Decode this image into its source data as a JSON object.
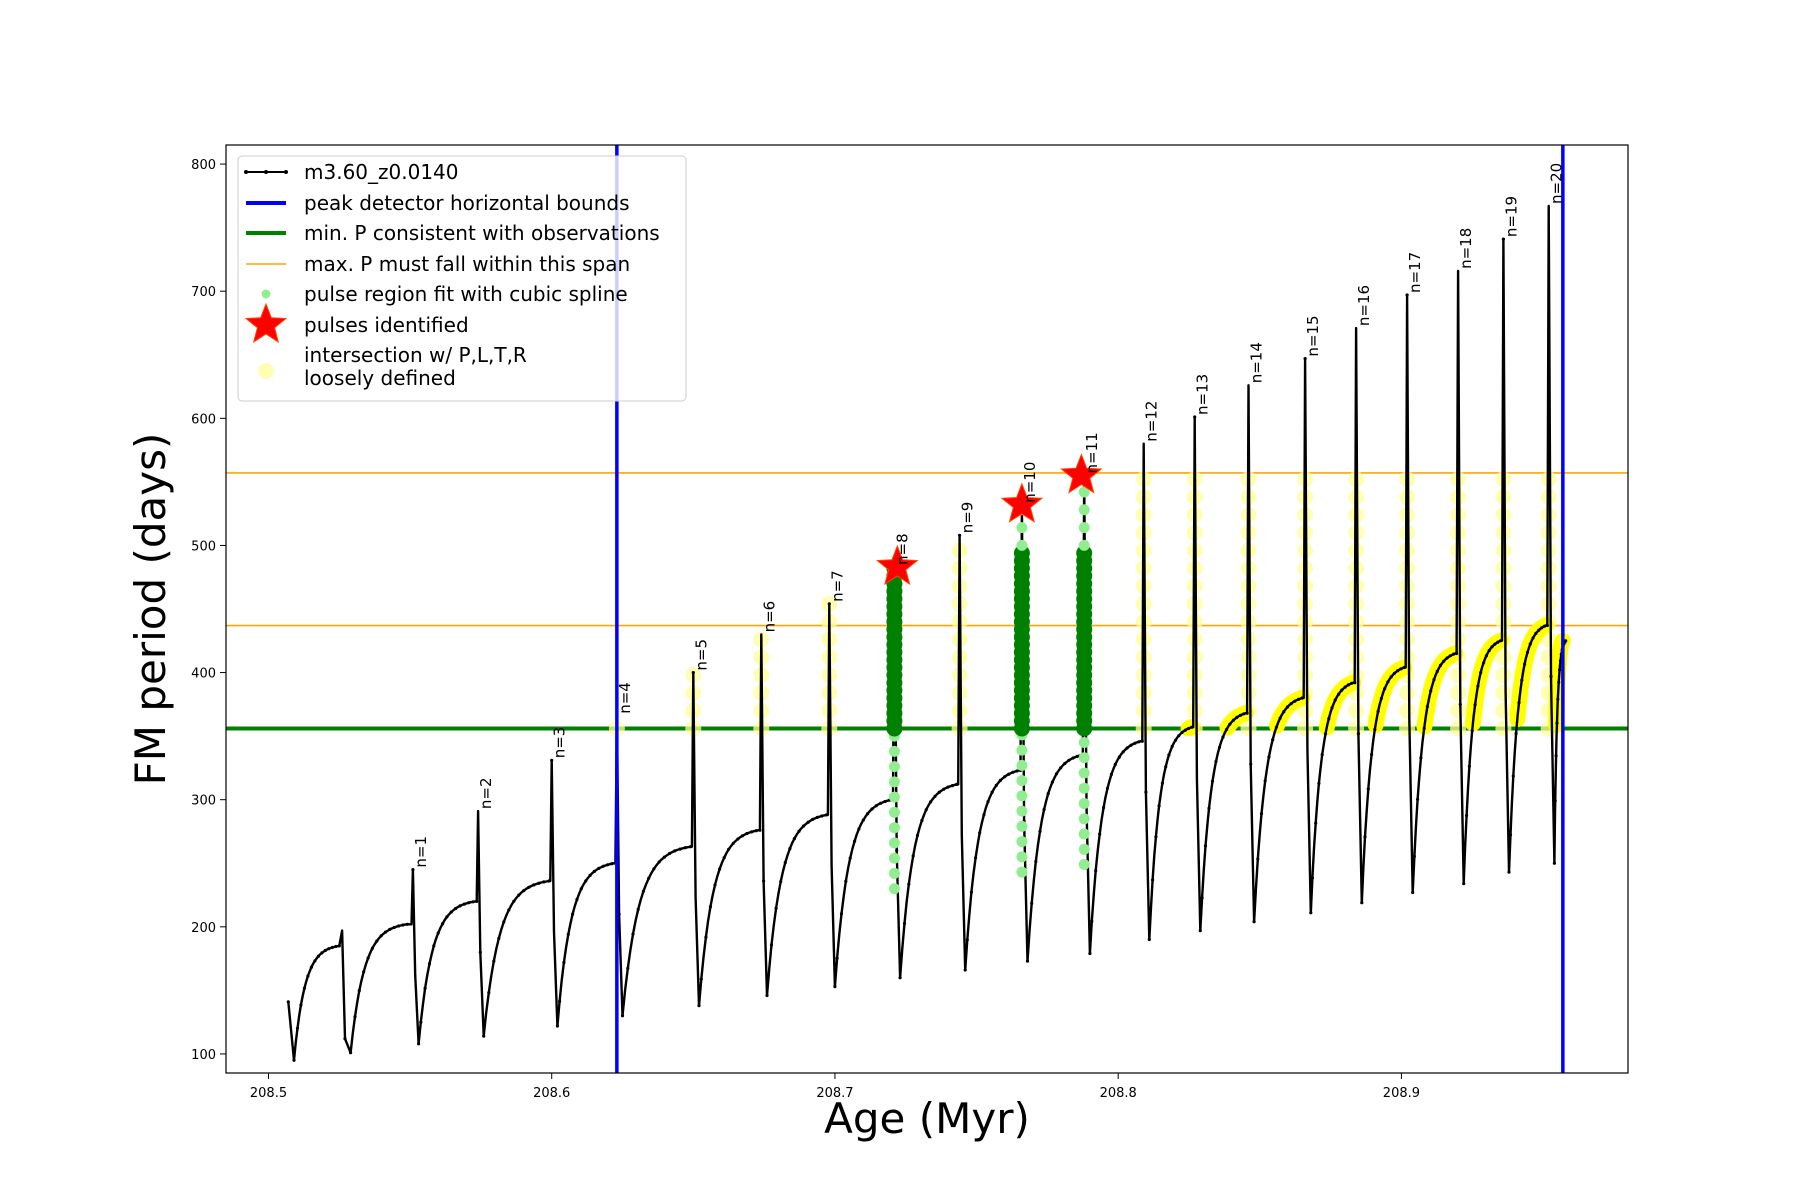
{
  "chart_data": {
    "type": "line",
    "xlabel": "Age (Myr)",
    "ylabel": "FM period (days)",
    "xlim": [
      208.485,
      208.98
    ],
    "ylim": [
      85,
      815
    ],
    "xticks": [
      208.5,
      208.6,
      208.7,
      208.8,
      208.9
    ],
    "yticks": [
      100,
      200,
      300,
      400,
      500,
      600,
      700,
      800
    ],
    "grid": false,
    "legend_position": "top-left",
    "legend": [
      {
        "label": "m3.60_z0.0140",
        "kind": "line-dots",
        "color": "#000000"
      },
      {
        "label": "peak detector horizontal bounds",
        "kind": "line",
        "color": "#0000ff"
      },
      {
        "label": "min. P consistent with observations",
        "kind": "line",
        "color": "#008000"
      },
      {
        "label": "max. P must fall within this span",
        "kind": "thin-line",
        "color": "#ffa500"
      },
      {
        "label": "pulse region fit with cubic spline",
        "kind": "dot",
        "color": "#90ee90"
      },
      {
        "label": "pulses identified",
        "kind": "star",
        "color": "#ff0000"
      },
      {
        "label": "intersection w/ P,L,T,R\nloosely defined",
        "kind": "big-dot",
        "color": "#ffff99"
      }
    ],
    "vertical_lines": {
      "color": "#0000ff",
      "x": [
        208.623,
        208.957
      ]
    },
    "min_period_line": {
      "color": "#008000",
      "y": 356
    },
    "max_period_span": {
      "color": "#ffa500",
      "y": [
        437,
        557
      ]
    },
    "start": {
      "age": 208.507,
      "period": 141,
      "min": 95,
      "plateau": 185
    },
    "pulses": [
      {
        "label": "n=1",
        "age": 208.551,
        "peak": 245,
        "pre": 202,
        "min": 108,
        "loose": false,
        "spline": false
      },
      {
        "label": "n=2",
        "age": 208.574,
        "peak": 291,
        "pre": 220,
        "min": 114,
        "loose": false,
        "spline": false
      },
      {
        "label": "n=3",
        "age": 208.6,
        "peak": 331,
        "pre": 236,
        "min": 122,
        "loose": false,
        "spline": false
      },
      {
        "label": "n=4",
        "age": 208.623,
        "peak": 366,
        "pre": 250,
        "min": 130,
        "loose": true,
        "spline": false
      },
      {
        "label": "n=5",
        "age": 208.65,
        "peak": 400,
        "pre": 263,
        "min": 138,
        "loose": true,
        "spline": false
      },
      {
        "label": "n=6",
        "age": 208.674,
        "peak": 430,
        "pre": 276,
        "min": 146,
        "loose": true,
        "spline": false
      },
      {
        "label": "n=7",
        "age": 208.698,
        "peak": 454,
        "pre": 288,
        "min": 153,
        "loose": true,
        "spline": false
      },
      {
        "label": "n=8",
        "age": 208.721,
        "peak": 483,
        "pre": 300,
        "min": 160,
        "loose": false,
        "spline": true
      },
      {
        "label": "n=9",
        "age": 208.744,
        "peak": 508,
        "pre": 312,
        "min": 166,
        "loose": true,
        "spline": false
      },
      {
        "label": "n=10",
        "age": 208.766,
        "peak": 532,
        "pre": 323,
        "min": 173,
        "loose": false,
        "spline": true
      },
      {
        "label": "n=11",
        "age": 208.788,
        "peak": 555,
        "pre": 335,
        "min": 179,
        "loose": false,
        "spline": true
      },
      {
        "label": "n=12",
        "age": 208.809,
        "peak": 580,
        "pre": 346,
        "min": 190,
        "loose": true,
        "spline": false
      },
      {
        "label": "n=13",
        "age": 208.827,
        "peak": 601,
        "pre": 357,
        "min": 197,
        "loose": true,
        "spline": false
      },
      {
        "label": "n=14",
        "age": 208.846,
        "peak": 626,
        "pre": 368,
        "min": 204,
        "loose": true,
        "spline": false
      },
      {
        "label": "n=15",
        "age": 208.866,
        "peak": 647,
        "pre": 380,
        "min": 211,
        "loose": true,
        "spline": false
      },
      {
        "label": "n=16",
        "age": 208.884,
        "peak": 671,
        "pre": 392,
        "min": 219,
        "loose": true,
        "spline": false
      },
      {
        "label": "n=17",
        "age": 208.902,
        "peak": 697,
        "pre": 404,
        "min": 227,
        "loose": true,
        "spline": false
      },
      {
        "label": "n=18",
        "age": 208.92,
        "peak": 716,
        "pre": 415,
        "min": 234,
        "loose": true,
        "spline": false
      },
      {
        "label": "n=19",
        "age": 208.936,
        "peak": 741,
        "pre": 425,
        "min": 243,
        "loose": true,
        "spline": false
      },
      {
        "label": "n=20",
        "age": 208.952,
        "peak": 767,
        "pre": 437,
        "min": 250,
        "loose": true,
        "spline": false
      }
    ],
    "end": {
      "age": 208.958,
      "period": 425
    },
    "pulses_identified": [
      {
        "label": "n=8",
        "age": 208.722,
        "period": 483
      },
      {
        "label": "n=10",
        "age": 208.766,
        "period": 532
      },
      {
        "label": "n=11",
        "age": 208.787,
        "period": 555
      }
    ]
  }
}
